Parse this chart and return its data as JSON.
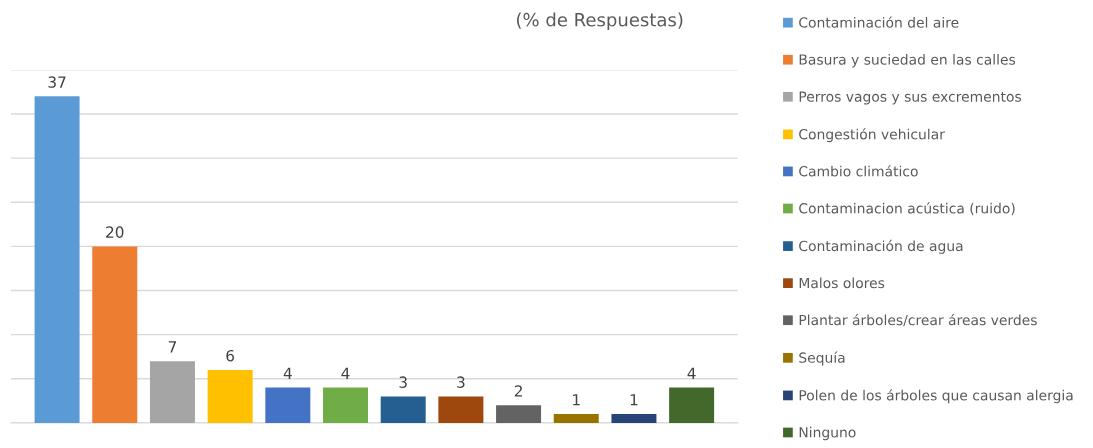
{
  "chart_data": {
    "type": "bar",
    "title": "(% de Respuestas)",
    "categories": [
      null,
      null,
      null,
      null,
      null,
      null,
      null,
      null,
      null,
      null,
      null,
      null
    ],
    "series": [
      {
        "name": "Contaminación del aire",
        "color": "#5b9bd5",
        "values": [
          37,
          null,
          null,
          null,
          null,
          null,
          null,
          null,
          null,
          null,
          null,
          null
        ]
      },
      {
        "name": "Basura y suciedad en las calles",
        "color": "#ed7d31",
        "values": [
          null,
          20,
          null,
          null,
          null,
          null,
          null,
          null,
          null,
          null,
          null,
          null
        ]
      },
      {
        "name": "Perros vagos y sus excrementos",
        "color": "#a5a5a5",
        "values": [
          null,
          null,
          7,
          null,
          null,
          null,
          null,
          null,
          null,
          null,
          null,
          null
        ]
      },
      {
        "name": "Congestión vehicular",
        "color": "#ffc000",
        "values": [
          null,
          null,
          null,
          6,
          null,
          null,
          null,
          null,
          null,
          null,
          null,
          null
        ]
      },
      {
        "name": "Cambio climático",
        "color": "#4472c4",
        "values": [
          null,
          null,
          null,
          null,
          4,
          null,
          null,
          null,
          null,
          null,
          null,
          null
        ]
      },
      {
        "name": "Contaminacion acústica (ruido)",
        "color": "#70ad47",
        "values": [
          null,
          null,
          null,
          null,
          null,
          4,
          null,
          null,
          null,
          null,
          null,
          null
        ]
      },
      {
        "name": "Contaminación de agua",
        "color": "#255e91",
        "values": [
          null,
          null,
          null,
          null,
          null,
          null,
          3,
          null,
          null,
          null,
          null,
          null
        ]
      },
      {
        "name": "Malos olores",
        "color": "#9e480e",
        "values": [
          null,
          null,
          null,
          null,
          null,
          null,
          null,
          3,
          null,
          null,
          null,
          null
        ]
      },
      {
        "name": "Plantar árboles/crear áreas verdes",
        "color": "#636363",
        "values": [
          null,
          null,
          null,
          null,
          null,
          null,
          null,
          null,
          2,
          null,
          null,
          null
        ]
      },
      {
        "name": "Sequía",
        "color": "#997300",
        "values": [
          null,
          null,
          null,
          null,
          null,
          null,
          null,
          null,
          null,
          1,
          null,
          null
        ]
      },
      {
        "name": "Polen de los árboles que causan alergia",
        "color": "#264478",
        "values": [
          null,
          null,
          null,
          null,
          null,
          null,
          null,
          null,
          null,
          null,
          1,
          null
        ]
      },
      {
        "name": "Ninguno",
        "color": "#43682b",
        "values": [
          null,
          null,
          null,
          null,
          null,
          null,
          null,
          null,
          null,
          null,
          null,
          4
        ]
      }
    ],
    "ylim": [
      0,
      40
    ],
    "yticks": [
      {
        "value": 0,
        "label": null
      },
      {
        "value": 5,
        "label": null
      },
      {
        "value": 10,
        "label": null
      },
      {
        "value": 15,
        "label": null
      },
      {
        "value": 20,
        "label": null
      },
      {
        "value": 25,
        "label": null
      },
      {
        "value": 30,
        "label": null
      },
      {
        "value": 35,
        "label": null
      },
      {
        "value": 40,
        "label": null
      }
    ],
    "grid": "y",
    "data_labels": true,
    "legend": "right",
    "stacked": true
  }
}
